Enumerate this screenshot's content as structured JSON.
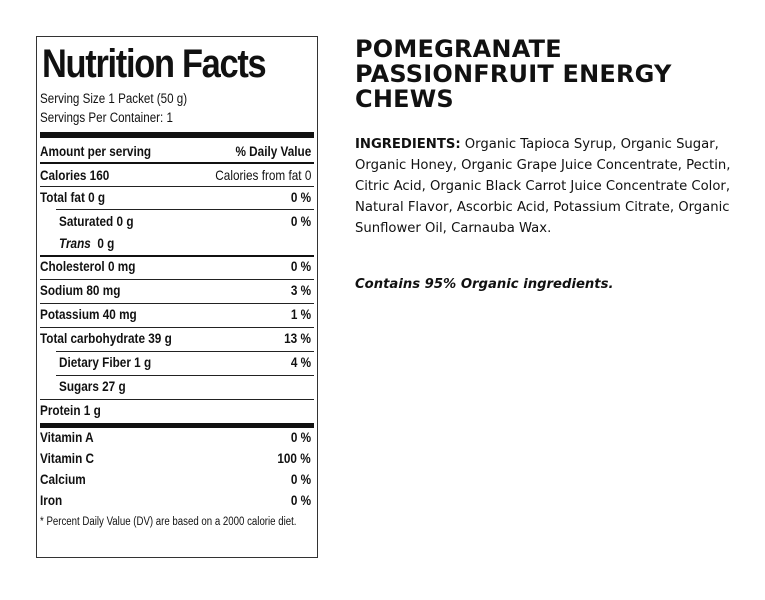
{
  "nutrition": {
    "title": "Nutrition Facts",
    "serving_size": "Serving Size 1 Packet (50 g)",
    "servings_per_container": "Servings Per Container: 1",
    "amount_per_serving": "Amount per serving",
    "daily_value_header": "% Daily Value",
    "calories": "Calories 160",
    "calories_from_fat": "Calories from fat  0",
    "rows": [
      {
        "label": "Total fat  0 g",
        "value": "0 %"
      },
      {
        "label": "Saturated  0 g",
        "value": "0 %"
      },
      {
        "label": "Trans",
        "amount": "0 g",
        "value": ""
      },
      {
        "label": "Cholesterol  0 mg",
        "value": "0 %"
      },
      {
        "label": "Sodium  80 mg",
        "value": "3 %"
      },
      {
        "label": "Potassium  40 mg",
        "value": "1 %"
      },
      {
        "label": "Total carbohydrate  39 g",
        "value": "13 %"
      },
      {
        "label": "Dietary Fiber 1 g",
        "value": "4 %"
      },
      {
        "label": "Sugars 27 g",
        "value": ""
      },
      {
        "label": "Protein  1 g",
        "value": ""
      }
    ],
    "vitamins": [
      {
        "label": "Vitamin A",
        "value": "0 %"
      },
      {
        "label": "Vitamin C",
        "value": "100 %"
      },
      {
        "label": "Calcium",
        "value": "0 %"
      },
      {
        "label": "Iron",
        "value": "0 %"
      }
    ],
    "footnote": "* Percent Daily Value (DV) are based on a 2000 calorie diet."
  },
  "product": {
    "name_lines": [
      "POMEGRANATE",
      "PASSIONFRUIT ENERGY",
      "CHEWS"
    ],
    "ingredients_label": "INGREDIENTS:",
    "ingredients_text": " Organic Tapioca Syrup, Organic Sugar, Organic Honey, Organic Grape Juice Concentrate, Pectin, Citric Acid, Organic Black Carrot Juice Concentrate Color, Natural Flavor, Ascorbic Acid, Potassium Citrate, Organic Sunflower Oil, Carnauba Wax.",
    "contains": "Contains 95% Organic ingredients."
  }
}
